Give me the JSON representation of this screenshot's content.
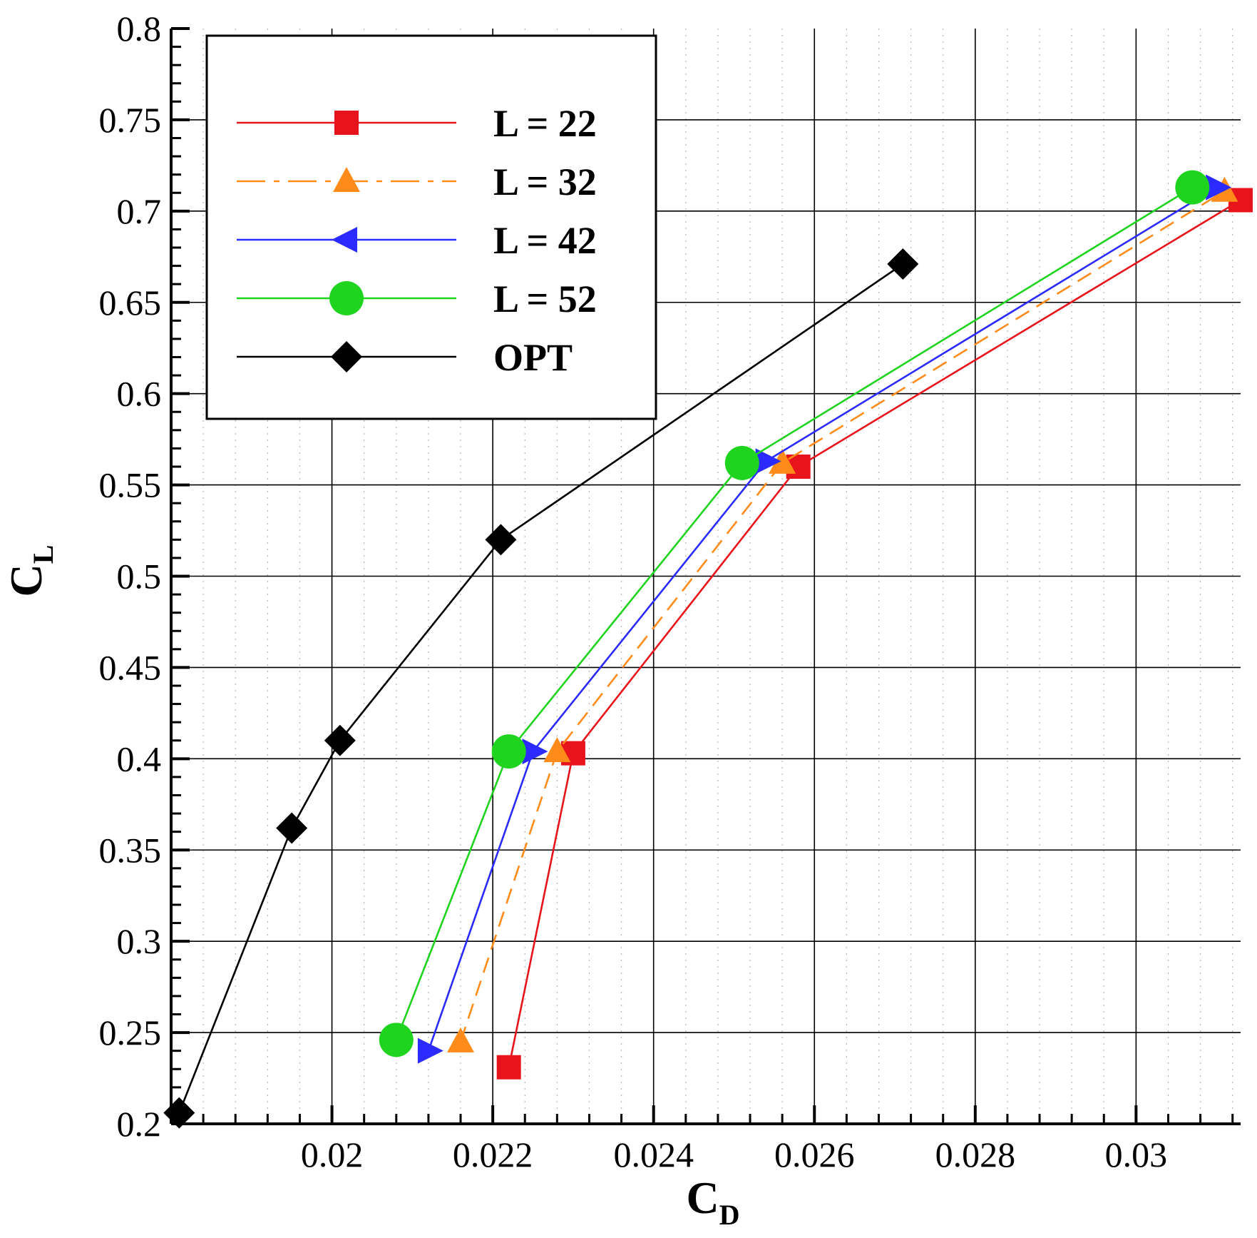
{
  "chart_data": {
    "type": "line",
    "xlabel": {
      "main": "C",
      "sub": "D"
    },
    "ylabel": {
      "main": "C",
      "sub": "L"
    },
    "xlim": [
      0.018,
      0.0313
    ],
    "ylim": [
      0.2,
      0.8
    ],
    "x_ticks": [
      0.02,
      0.022,
      0.024,
      0.026,
      0.028,
      0.03
    ],
    "x_tick_labels": [
      "0.02",
      "0.022",
      "0.024",
      "0.026",
      "0.028",
      "0.03"
    ],
    "y_ticks": [
      0.2,
      0.25,
      0.3,
      0.35,
      0.4,
      0.45,
      0.5,
      0.55,
      0.6,
      0.65,
      0.7,
      0.75,
      0.8
    ],
    "y_tick_labels": [
      "0.2",
      "0.25",
      "0.3",
      "0.35",
      "0.4",
      "0.45",
      "0.5",
      "0.55",
      "0.6",
      "0.65",
      "0.7",
      "0.75",
      "0.8"
    ],
    "grid": true,
    "legend_position": "top-left",
    "series": [
      {
        "name": "L = 22",
        "color": "#e8141c",
        "marker": "square",
        "dash": "solid",
        "x": [
          0.0222,
          0.023,
          0.0258,
          0.0313
        ],
        "y": [
          0.231,
          0.403,
          0.56,
          0.706
        ]
      },
      {
        "name": "L = 32",
        "color": "#ff8c1a",
        "marker": "triangle-up",
        "dash": "dashed",
        "x": [
          0.0216,
          0.0228,
          0.0256,
          0.0311
        ],
        "y": [
          0.245,
          0.404,
          0.562,
          0.711
        ]
      },
      {
        "name": "L = 42",
        "color": "#2b2bff",
        "marker": "triangle-right",
        "dash": "solid",
        "x": [
          0.0212,
          0.0225,
          0.0254,
          0.031
        ],
        "y": [
          0.24,
          0.404,
          0.563,
          0.713
        ]
      },
      {
        "name": "L = 52",
        "color": "#1fd41f",
        "marker": "circle",
        "dash": "solid",
        "x": [
          0.0208,
          0.0222,
          0.0251,
          0.0307
        ],
        "y": [
          0.246,
          0.404,
          0.562,
          0.713
        ]
      },
      {
        "name": "OPT",
        "color": "#000000",
        "marker": "diamond",
        "dash": "solid",
        "x": [
          0.0181,
          0.0195,
          0.0201,
          0.0221,
          0.0271
        ],
        "y": [
          0.206,
          0.362,
          0.41,
          0.52,
          0.671
        ]
      }
    ]
  }
}
